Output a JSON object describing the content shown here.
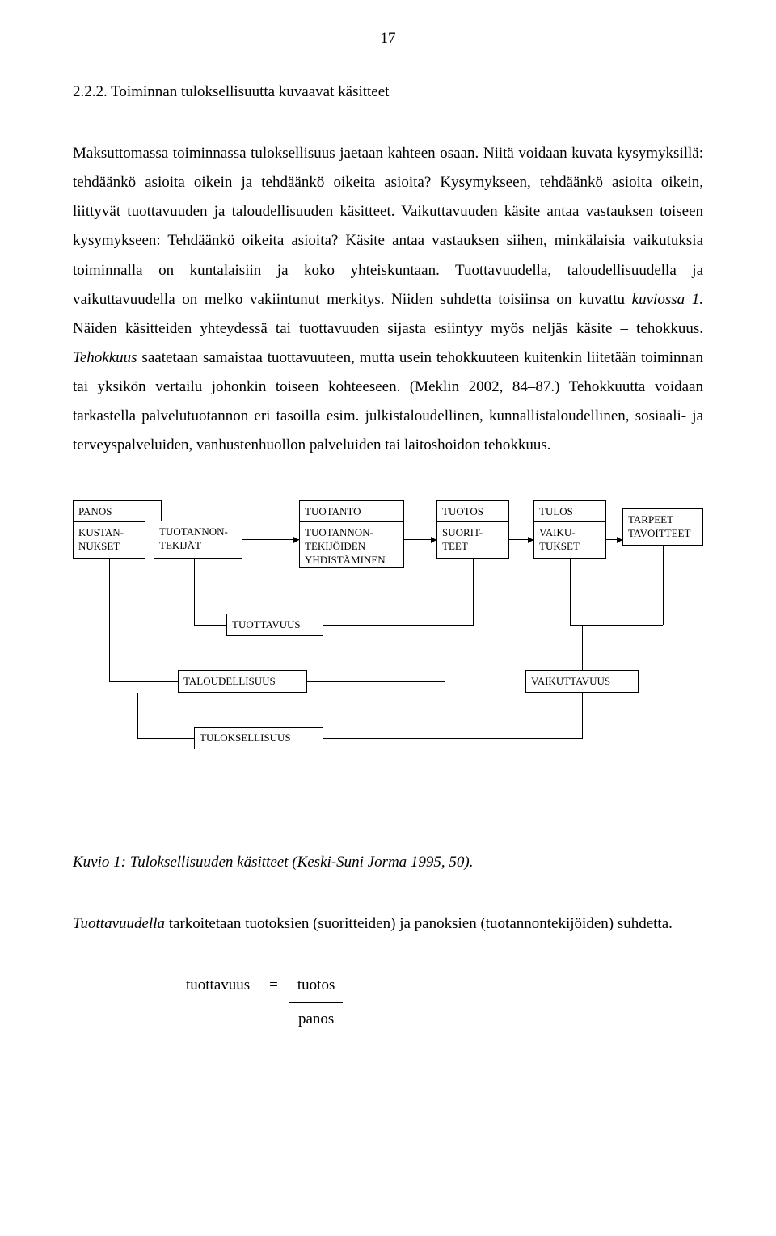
{
  "page_number": "17",
  "heading": "2.2.2. Toiminnan tuloksellisuutta kuvaavat käsitteet",
  "body_text_html": "Maksuttomassa toiminnassa tuloksellisuus jaetaan kahteen osaan. Niitä voidaan kuvata kysymyksillä: tehdäänkö asioita oikein ja tehdäänkö oikeita asioita? Kysymykseen, tehdäänkö asioita oikein, liittyvät tuottavuuden ja taloudellisuuden käsitteet. Vaikuttavuuden käsite antaa vastauksen toiseen kysymykseen: Tehdäänkö oikeita asioita? Käsite antaa vastauksen siihen, minkälaisia vaikutuksia toiminnalla on kuntalaisiin ja koko yhteiskuntaan. Tuottavuudella, taloudellisuudella ja vaikuttavuudella on melko vakiintunut merkitys. Niiden suhdetta toisiinsa on kuvattu <span class=\"italic\">kuviossa 1.</span> Näiden käsitteiden yhteydessä tai tuottavuuden sijasta esiintyy myös neljäs käsite – tehokkuus. <span class=\"italic\">Tehokkuus</span> saatetaan samaistaa tuottavuuteen, mutta usein tehokkuuteen kuitenkin liitetään toiminnan tai yksikön vertailu johonkin toiseen kohteeseen. (Meklin 2002, 84–87.) Tehokkuutta voidaan tarkastella palvelutuotannon eri tasoilla esim. julkistaloudellinen, kunnallistaloudellinen, sosiaali- ja terveyspalveluiden, vanhustenhuollon palveluiden tai laitoshoidon tehokkuus.",
  "diagram": {
    "panos_header": "PANOS",
    "kustannukset": "KUSTAN-\nNUKSET",
    "tuotannontekijat": "TUOTANNON-\nTEKIJÄT",
    "tuotanto_header": "TUOTANTO",
    "tuotannontekijoiden": "TUOTANNON-\nTEKIJÖIDEN\nYHDISTÄMINEN",
    "tuotos_header": "TUOTOS",
    "suoritteet": "SUORIT-\nTEET",
    "tulos_header": "TULOS",
    "vaikutukset": "VAIKU-\nTUKSET",
    "tarpeet": "TARPEET\nTAVOITTEET",
    "tuottavuus": "TUOTTAVUUS",
    "taloudellisuus": "TALOUDELLISUUS",
    "vaikuttavuus": "VAIKUTTAVUUS",
    "tuloksellisuus": "TULOKSELLISUUS"
  },
  "caption": "Kuvio 1: Tuloksellisuuden käsitteet (Keski-Suni Jorma 1995, 50).",
  "para2_html": "<span class=\"italic\">Tuottavuudella</span> tarkoitetaan tuotoksien (suoritteiden) ja panoksien (tuotannontekijöiden) suhdetta.",
  "formula": {
    "lhs": "tuottavuus",
    "eq": "=",
    "numerator": "tuotos",
    "denominator": "panos"
  },
  "colors": {
    "text": "#000000",
    "background": "#ffffff",
    "border": "#000000"
  }
}
